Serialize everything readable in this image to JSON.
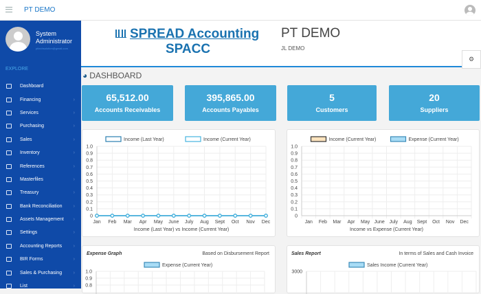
{
  "topbar": {
    "title": "PT DEMO"
  },
  "sidebar": {
    "user_name": "System Administrator",
    "email": "pttechsolution@gmail.com",
    "section": "EXPLORE",
    "items": [
      {
        "label": "Dashboard"
      },
      {
        "label": "Financing"
      },
      {
        "label": "Services"
      },
      {
        "label": "Purchasing"
      },
      {
        "label": "Sales"
      },
      {
        "label": "Inventory"
      },
      {
        "label": "References"
      },
      {
        "label": "Masterfiles"
      },
      {
        "label": "Treasury"
      },
      {
        "label": "Bank Reconciliation"
      },
      {
        "label": "Assets Management"
      },
      {
        "label": "Settings"
      },
      {
        "label": "Accounting Reports"
      },
      {
        "label": "BIR Forms"
      },
      {
        "label": "Sales & Purchasing"
      },
      {
        "label": "List"
      }
    ]
  },
  "header": {
    "brand_line1": "SPREAD Accounting",
    "brand_line2": "SPACC",
    "company": "PT DEMO",
    "subtitle": "JL DEMO"
  },
  "dashboard": {
    "title": "DASHBOARD",
    "cards": [
      {
        "value": "65,512.00",
        "label": "Accounts Receivables"
      },
      {
        "value": "395,865.00",
        "label": "Accounts Payables"
      },
      {
        "value": "5",
        "label": "Customers"
      },
      {
        "value": "20",
        "label": "Suppliers"
      }
    ]
  },
  "bottom": {
    "expense_title": "Expense Graph",
    "expense_note": "Based on Disbursement Report",
    "sales_title": "Sales Report",
    "sales_note": "In terms of Sales and Cash Invoice"
  },
  "chart_data": [
    {
      "type": "line",
      "title": "Income (Last Year) vs Income (Current Year)",
      "categories": [
        "Jan",
        "Feb",
        "Mar",
        "Apr",
        "May",
        "June",
        "July",
        "Aug",
        "Sept",
        "Oct",
        "Nov",
        "Dec"
      ],
      "ylim": [
        0,
        1
      ],
      "yticks": [
        "1.0",
        "0.9",
        "0.8",
        "0.7",
        "0.6",
        "0.5",
        "0.4",
        "0.3",
        "0.2",
        "0.1",
        "0"
      ],
      "legend": "top",
      "series": [
        {
          "name": "Income (Last Year)",
          "color": "#2a7fb0",
          "values": [
            0,
            0,
            0,
            0,
            0,
            0,
            0,
            0,
            0,
            0,
            0,
            0
          ]
        },
        {
          "name": "Income (Current Year)",
          "color": "#45b4e0",
          "values": [
            0,
            0,
            0,
            0,
            0,
            0,
            0,
            0,
            0,
            0,
            0,
            0
          ]
        }
      ]
    },
    {
      "type": "bar",
      "title": "Income vs Expense (Current Year)",
      "categories": [
        "Jan",
        "Feb",
        "Mar",
        "Apr",
        "May",
        "June",
        "July",
        "Aug",
        "Sept",
        "Oct",
        "Nov",
        "Dec"
      ],
      "ylim": [
        0,
        1
      ],
      "yticks": [
        "1.0",
        "0.9",
        "0.8",
        "0.7",
        "0.6",
        "0.5",
        "0.4",
        "0.3",
        "0.2",
        "0.1",
        "0"
      ],
      "legend": "top",
      "series": [
        {
          "name": "Income (Current Year)",
          "color": "#fde3bd",
          "values": [
            0,
            0,
            0,
            0,
            0,
            0,
            0,
            0,
            0,
            0,
            0,
            0
          ]
        },
        {
          "name": "Expense (Current Year)",
          "color": "#a8dcf5",
          "values": [
            0,
            0,
            0,
            0,
            0,
            0,
            0,
            0,
            0,
            0,
            0,
            0
          ]
        }
      ]
    },
    {
      "type": "bar",
      "title": "Expense Graph",
      "yticks": [
        "1.0",
        "0.9",
        "0.8"
      ],
      "legend": "top",
      "series": [
        {
          "name": "Expense (Current Year)",
          "color": "#a8dcf5"
        }
      ]
    },
    {
      "type": "bar",
      "title": "Sales Report",
      "yticks": [
        "3000"
      ],
      "legend": "top",
      "series": [
        {
          "name": "Sales Income (Current Year)",
          "color": "#a8dcf5"
        }
      ]
    }
  ]
}
